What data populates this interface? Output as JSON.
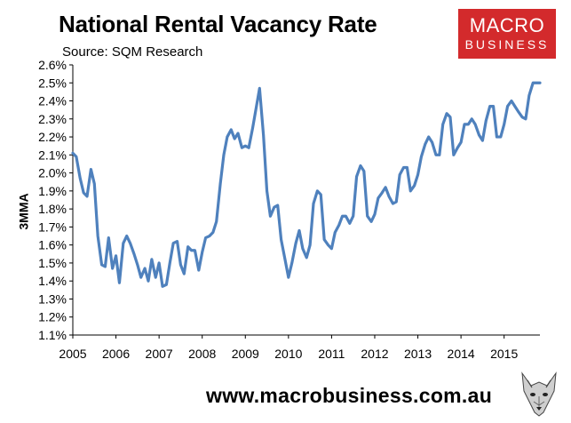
{
  "header": {
    "title": "National Rental Vacancy Rate",
    "source": "Source: SQM Research"
  },
  "logo": {
    "line1": "MACRO",
    "line2": "BUSINESS"
  },
  "footer": {
    "url": "www.macrobusiness.com.au"
  },
  "colors": {
    "line": "#4f81bd",
    "logo_bg": "#d32a2c",
    "axis": "#000000"
  },
  "chart_data": {
    "type": "line",
    "title": "National Rental Vacancy Rate",
    "xlabel": "",
    "ylabel": "3MMA",
    "ylim": [
      1.1,
      2.6
    ],
    "xlim": [
      2005.0,
      2015.83
    ],
    "grid": false,
    "y_ticks": [
      "1.1%",
      "1.2%",
      "1.3%",
      "1.4%",
      "1.5%",
      "1.6%",
      "1.7%",
      "1.8%",
      "1.9%",
      "2.0%",
      "2.1%",
      "2.2%",
      "2.3%",
      "2.4%",
      "2.5%",
      "2.6%"
    ],
    "x_ticks": [
      "2005",
      "2006",
      "2007",
      "2008",
      "2009",
      "2010",
      "2011",
      "2012",
      "2013",
      "2014",
      "2015"
    ],
    "series": [
      {
        "x": [
          2005.0,
          2005.08,
          2005.17,
          2005.25,
          2005.33,
          2005.42,
          2005.5,
          2005.58,
          2005.67,
          2005.75,
          2005.83,
          2005.92,
          2006.0,
          2006.08,
          2006.17,
          2006.25,
          2006.33,
          2006.42,
          2006.5,
          2006.58,
          2006.67,
          2006.75,
          2006.83,
          2006.92,
          2007.0,
          2007.08,
          2007.17,
          2007.25,
          2007.33,
          2007.42,
          2007.5,
          2007.58,
          2007.67,
          2007.75,
          2007.83,
          2007.92,
          2008.0,
          2008.08,
          2008.17,
          2008.25,
          2008.33,
          2008.42,
          2008.5,
          2008.58,
          2008.67,
          2008.75,
          2008.83,
          2008.92,
          2009.0,
          2009.08,
          2009.17,
          2009.25,
          2009.33,
          2009.42,
          2009.5,
          2009.58,
          2009.67,
          2009.75,
          2009.83,
          2009.92,
          2010.0,
          2010.08,
          2010.17,
          2010.25,
          2010.33,
          2010.42,
          2010.5,
          2010.58,
          2010.67,
          2010.75,
          2010.83,
          2010.92,
          2011.0,
          2011.08,
          2011.17,
          2011.25,
          2011.33,
          2011.42,
          2011.5,
          2011.58,
          2011.67,
          2011.75,
          2011.83,
          2011.92,
          2012.0,
          2012.08,
          2012.17,
          2012.25,
          2012.33,
          2012.42,
          2012.5,
          2012.58,
          2012.67,
          2012.75,
          2012.83,
          2012.92,
          2013.0,
          2013.08,
          2013.17,
          2013.25,
          2013.33,
          2013.42,
          2013.5,
          2013.58,
          2013.67,
          2013.75,
          2013.83,
          2013.92,
          2014.0,
          2014.08,
          2014.17,
          2014.25,
          2014.33,
          2014.42,
          2014.5,
          2014.58,
          2014.67,
          2014.75,
          2014.83,
          2014.92,
          2015.0,
          2015.08,
          2015.17,
          2015.25,
          2015.33,
          2015.42,
          2015.5,
          2015.58,
          2015.67,
          2015.75,
          2015.83
        ],
        "values": [
          2.11,
          2.09,
          1.97,
          1.89,
          1.87,
          2.02,
          1.94,
          1.65,
          1.49,
          1.48,
          1.64,
          1.47,
          1.54,
          1.39,
          1.61,
          1.65,
          1.61,
          1.55,
          1.49,
          1.42,
          1.47,
          1.4,
          1.52,
          1.42,
          1.5,
          1.37,
          1.38,
          1.5,
          1.61,
          1.62,
          1.49,
          1.44,
          1.59,
          1.57,
          1.57,
          1.46,
          1.56,
          1.64,
          1.65,
          1.67,
          1.73,
          1.94,
          2.1,
          2.2,
          2.24,
          2.19,
          2.22,
          2.14,
          2.15,
          2.14,
          2.25,
          2.36,
          2.47,
          2.21,
          1.9,
          1.76,
          1.81,
          1.82,
          1.63,
          1.52,
          1.42,
          1.5,
          1.61,
          1.68,
          1.58,
          1.53,
          1.6,
          1.83,
          1.9,
          1.88,
          1.63,
          1.6,
          1.58,
          1.67,
          1.71,
          1.76,
          1.76,
          1.72,
          1.76,
          1.98,
          2.04,
          2.01,
          1.76,
          1.73,
          1.77,
          1.86,
          1.89,
          1.92,
          1.87,
          1.83,
          1.84,
          1.99,
          2.03,
          2.03,
          1.9,
          1.93,
          1.99,
          2.09,
          2.16,
          2.2,
          2.17,
          2.1,
          2.1,
          2.27,
          2.33,
          2.31,
          2.1,
          2.14,
          2.17,
          2.27,
          2.27,
          2.3,
          2.27,
          2.21,
          2.18,
          2.29,
          2.37,
          2.37,
          2.2,
          2.2,
          2.27,
          2.37,
          2.4,
          2.37,
          2.34,
          2.31,
          2.3,
          2.43,
          2.5,
          2.5,
          2.5
        ]
      }
    ]
  }
}
